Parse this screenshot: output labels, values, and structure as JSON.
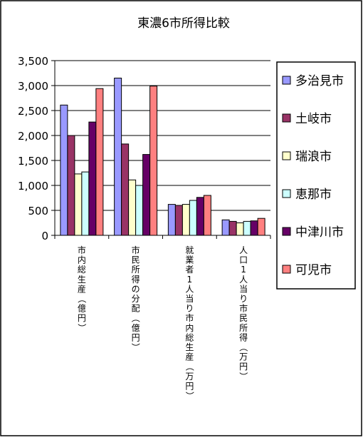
{
  "chart_data": {
    "type": "bar",
    "title": "東濃6市所得比較",
    "categories": [
      "市内総生産（億円）",
      "市民所得の分配（億円）",
      "就業者1人当り市内総生産（万円）",
      "人口1人当り市民所得（万円）"
    ],
    "series": [
      {
        "name": "多治見市",
        "color": "#9999ff",
        "values": [
          2610,
          3150,
          620,
          310
        ]
      },
      {
        "name": "土岐市",
        "color": "#993366",
        "values": [
          2000,
          1830,
          600,
          280
        ]
      },
      {
        "name": "瑞浪市",
        "color": "#ffffcc",
        "values": [
          1230,
          1110,
          620,
          250
        ]
      },
      {
        "name": "恵那市",
        "color": "#ccffff",
        "values": [
          1270,
          1000,
          700,
          280
        ]
      },
      {
        "name": "中津川市",
        "color": "#660066",
        "values": [
          2270,
          1620,
          760,
          290
        ]
      },
      {
        "name": "可児市",
        "color": "#ff8080",
        "values": [
          2940,
          2990,
          800,
          340
        ]
      }
    ],
    "ylim": [
      0,
      3500
    ],
    "yticks": [
      "0",
      "500",
      "1,000",
      "1,500",
      "2,000",
      "2,500",
      "3,000",
      "3,500"
    ],
    "ytick_values": [
      0,
      500,
      1000,
      1500,
      2000,
      2500,
      3000,
      3500
    ],
    "grid": "horizontal",
    "legend": "right",
    "plot_background": "#ffffff",
    "gridline_color": "#000000"
  }
}
